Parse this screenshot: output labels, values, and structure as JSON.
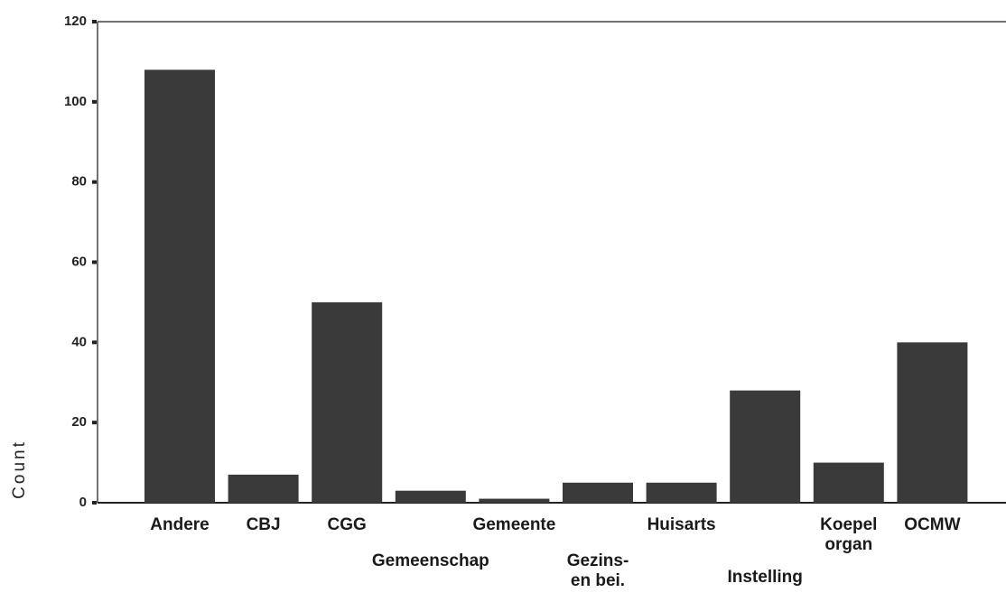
{
  "chart_data": {
    "type": "bar",
    "y_label": "Count",
    "categories": [
      "Andere",
      "CBJ",
      "CGG",
      "Gemeenschap",
      "Gemeente",
      "Gezins-\nen bei.",
      "Huisarts",
      "Instelling",
      "Koepel\norgan",
      "OCMW"
    ],
    "values": [
      108,
      7,
      50,
      3,
      1,
      5,
      5,
      28,
      10,
      40
    ],
    "color": "#3a3a3a",
    "ylim": [
      0,
      120
    ],
    "yticks": [
      0,
      20,
      40,
      60,
      80,
      100,
      120
    ],
    "grid": false
  }
}
